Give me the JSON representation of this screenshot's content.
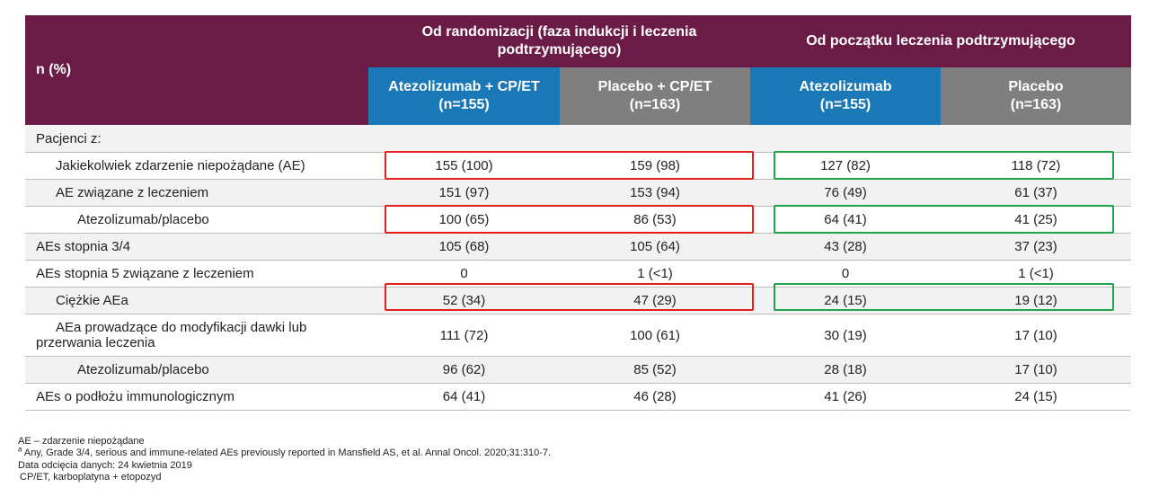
{
  "header": {
    "row_label": "n (%)",
    "group1": "Od randomizacji (faza indukcji i leczenia podtrzymującego)",
    "group2": "Od początku leczenia podtrzymującego",
    "sub": [
      {
        "name": "Atezolizumab + CP/ET",
        "n": "(n=155)"
      },
      {
        "name": "Placebo + CP/ET",
        "n": "(n=163)"
      },
      {
        "name": "Atezolizumab",
        "n": "(n=155)"
      },
      {
        "name": "Placebo",
        "n": "(n=163)"
      }
    ]
  },
  "rows": [
    {
      "label": "Pacjenci z:",
      "values": [
        "",
        "",
        "",
        ""
      ]
    },
    {
      "label": "Jakiekolwiek zdarzenie niepożądane (AE)",
      "values": [
        "155 (100)",
        "159 (98)",
        "127 (82)",
        "118 (72)"
      ]
    },
    {
      "label": "AE związane z leczeniem",
      "values": [
        "151 (97)",
        "153 (94)",
        "76 (49)",
        "61 (37)"
      ]
    },
    {
      "label": "Atezolizumab/placebo",
      "values": [
        "100 (65)",
        "86 (53)",
        "64 (41)",
        "41 (25)"
      ]
    },
    {
      "label": "AEs stopnia 3/4",
      "values": [
        "105 (68)",
        "105 (64)",
        "43 (28)",
        "37 (23)"
      ]
    },
    {
      "label": "AEs stopnia 5 związane z leczeniem",
      "values": [
        "0",
        "1 (<1)",
        "0",
        "1 (<1)"
      ]
    },
    {
      "label": "Ciężkie AEa",
      "values": [
        "52 (34)",
        "47 (29)",
        "24 (15)",
        "19 (12)"
      ]
    },
    {
      "label": "AEa prowadzące do modyfikacji dawki lub przerwania leczenia",
      "values": [
        "111 (72)",
        "100 (61)",
        "30 (19)",
        "17 (10)"
      ]
    },
    {
      "label": "Atezolizumab/placebo",
      "values": [
        "96 (62)",
        "85 (52)",
        "28 (18)",
        "17 (10)"
      ]
    },
    {
      "label": "AEs o podłożu immunologicznym",
      "values": [
        "64 (41)",
        "46 (28)",
        "41 (26)",
        "24 (15)"
      ]
    }
  ],
  "footnotes": {
    "ae": "AE – zdarzenie niepożądane",
    "a_marker": "a",
    "a_text": " Any, Grade 3/4, serious and immune-related AEs previously reported in Mansfield AS, et al. Annal Oncol. 2020;31:310-7.",
    "cutoff": "Data odcięcia danych: 24 kwietnia 2019",
    "cpet": "CP/ET, karboplatyna + etopozyd"
  },
  "colors": {
    "header_purple": "#6b1c46",
    "atezo_blue": "#1b78b7",
    "placebo_grey": "#7f7f7f",
    "highlight_red": "#e2211c",
    "highlight_green": "#20a44a"
  }
}
